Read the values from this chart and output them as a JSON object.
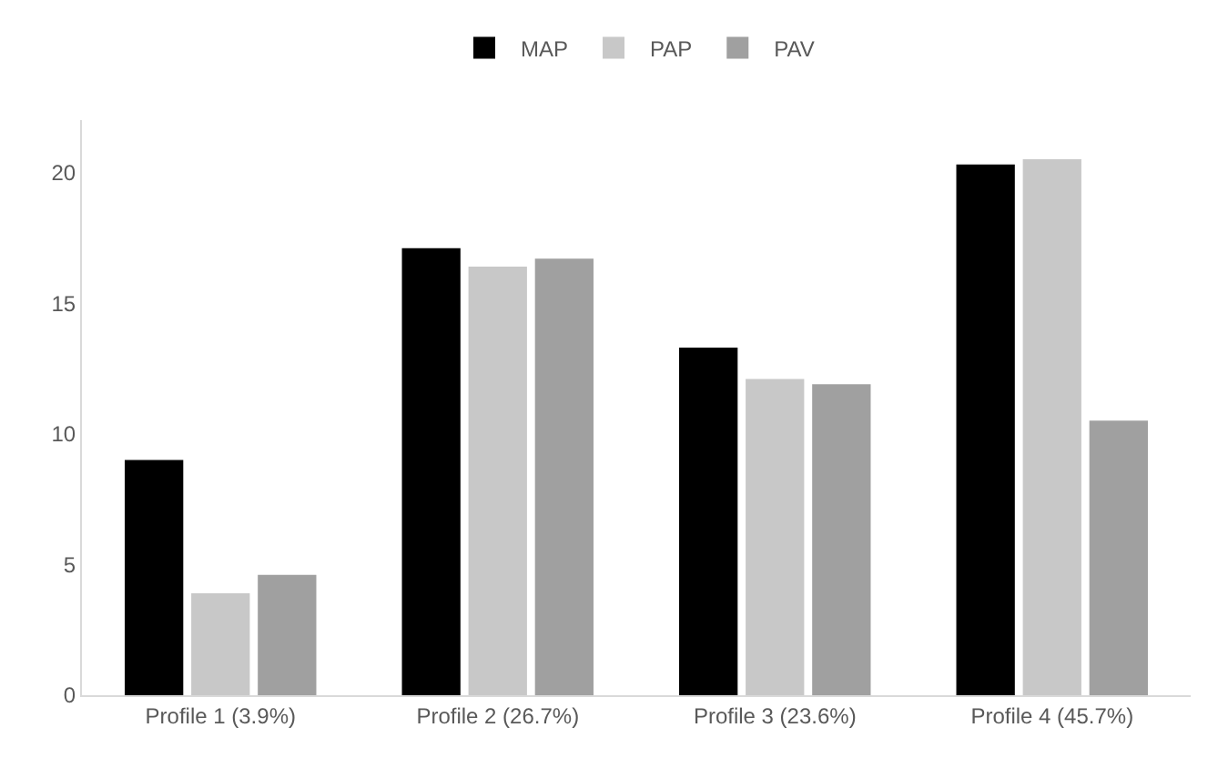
{
  "chart_data": {
    "type": "bar",
    "categories": [
      "Profile 1 (3.9%)",
      "Profile 2 (26.7%)",
      "Profile 3 (23.6%)",
      "Profile 4 (45.7%)"
    ],
    "series": [
      {
        "name": "MAP",
        "color": "#000000",
        "values": [
          9.0,
          17.1,
          13.3,
          20.3
        ]
      },
      {
        "name": "PAP",
        "color": "#c8c8c8",
        "values": [
          3.9,
          16.4,
          12.1,
          20.5
        ]
      },
      {
        "name": "PAV",
        "color": "#a0a0a0",
        "values": [
          4.6,
          16.7,
          11.9,
          10.5
        ]
      }
    ],
    "ylim": [
      0,
      22
    ],
    "yticks": [
      0,
      5,
      10,
      15,
      20
    ],
    "legend": "top"
  }
}
